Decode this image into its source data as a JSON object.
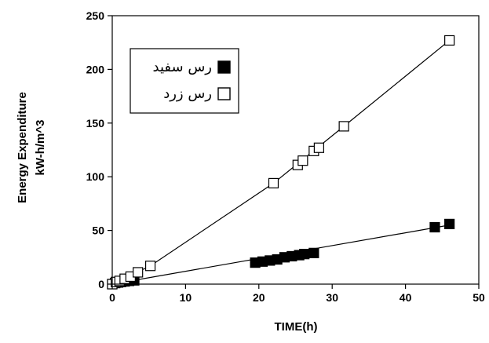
{
  "chart_data": {
    "type": "scatter",
    "title": "",
    "xlabel": "TIME(h)",
    "ylabel_lines": [
      "Energy Expenditure",
      "kW-h/m^3"
    ],
    "xlim": [
      0,
      50
    ],
    "ylim": [
      0,
      250
    ],
    "x_ticks": [
      0,
      10,
      20,
      30,
      40,
      50
    ],
    "y_ticks": [
      0,
      50,
      100,
      150,
      200,
      250
    ],
    "grid": false,
    "legend_position": "top-left",
    "series": [
      {
        "name": "رس سفید",
        "marker": "filled-square",
        "color": "#000000",
        "points": [
          [
            0,
            0
          ],
          [
            0.4,
            1
          ],
          [
            0.8,
            1.5
          ],
          [
            1.2,
            2
          ],
          [
            1.7,
            2.5
          ],
          [
            2.3,
            3
          ],
          [
            3,
            3.5
          ],
          [
            19.5,
            20
          ],
          [
            20.5,
            21
          ],
          [
            21.5,
            22
          ],
          [
            22.5,
            23
          ],
          [
            23.5,
            25
          ],
          [
            24.5,
            26
          ],
          [
            25.5,
            27
          ],
          [
            26.2,
            28
          ],
          [
            27.5,
            29
          ],
          [
            44,
            53
          ],
          [
            46,
            56
          ]
        ],
        "fit_line": [
          [
            0,
            0
          ],
          [
            46,
            55
          ]
        ]
      },
      {
        "name": "رس زرد",
        "marker": "open-square",
        "color": "#000000",
        "points": [
          [
            0,
            0
          ],
          [
            0.5,
            2
          ],
          [
            1,
            3
          ],
          [
            1.7,
            5
          ],
          [
            2.5,
            7
          ],
          [
            3.5,
            11
          ],
          [
            5.2,
            17
          ],
          [
            22,
            94
          ],
          [
            25.3,
            111
          ],
          [
            26,
            115
          ],
          [
            27.5,
            124
          ],
          [
            28.2,
            127
          ],
          [
            31.6,
            147
          ],
          [
            46,
            227
          ]
        ],
        "fit_line": [
          [
            0,
            0
          ],
          [
            5.2,
            17
          ],
          [
            22,
            94
          ],
          [
            31.6,
            147
          ],
          [
            46,
            227
          ]
        ]
      }
    ]
  }
}
